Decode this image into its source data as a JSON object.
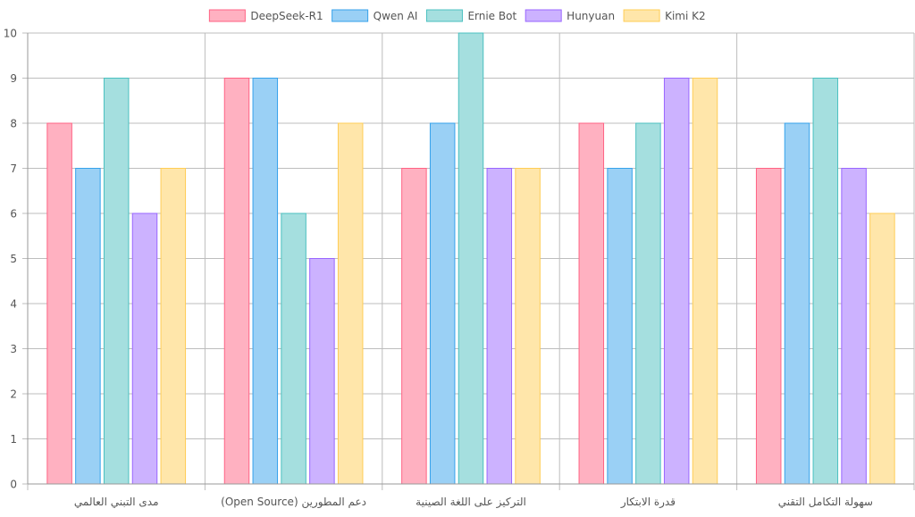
{
  "chart_data": {
    "type": "bar",
    "categories": [
      "مدى التبني العالمي",
      "دعم المطورين (Open Source)",
      "التركيز على اللغة الصينية",
      "قدرة الابتكار",
      "سهولة التكامل التقني"
    ],
    "series": [
      {
        "name": "DeepSeek-R1",
        "values": [
          8,
          9,
          7,
          8,
          7
        ],
        "fill": "#ffb1c1",
        "stroke": "#ff6384"
      },
      {
        "name": "Qwen AI",
        "values": [
          7,
          9,
          8,
          7,
          8
        ],
        "fill": "#9ad0f5",
        "stroke": "#36a2eb"
      },
      {
        "name": "Ernie Bot",
        "values": [
          9,
          6,
          10,
          8,
          9
        ],
        "fill": "#a5dfdf",
        "stroke": "#4bc0c0"
      },
      {
        "name": "Hunyuan",
        "values": [
          6,
          5,
          7,
          9,
          7
        ],
        "fill": "#ccb2ff",
        "stroke": "#9966ff"
      },
      {
        "name": "Kimi K2",
        "values": [
          7,
          8,
          7,
          9,
          6
        ],
        "fill": "#ffe6aa",
        "stroke": "#ffcd56"
      }
    ],
    "y_ticks": [
      "0",
      "1",
      "2",
      "3",
      "4",
      "5",
      "6",
      "7",
      "8",
      "9",
      "10"
    ],
    "ylim": [
      0,
      10
    ],
    "grid": true,
    "legend_position": "top"
  }
}
